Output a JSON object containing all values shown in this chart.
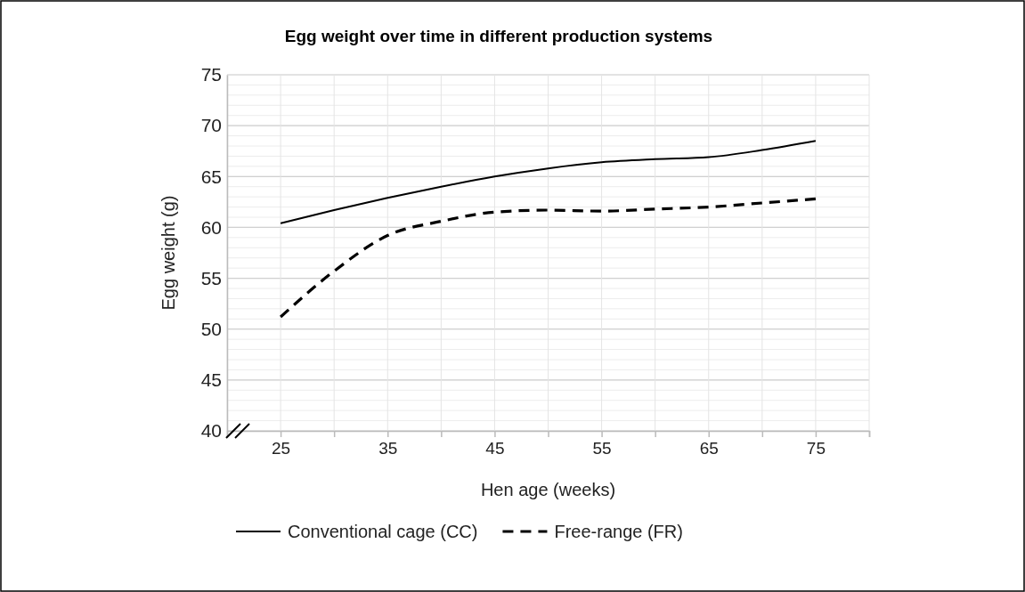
{
  "chart_data": {
    "type": "line",
    "title": "Egg weight over time in different production systems",
    "xlabel": "Hen age (weeks)",
    "ylabel": "Egg weight (g)",
    "x": [
      25,
      30,
      35,
      40,
      45,
      50,
      55,
      60,
      65,
      70,
      75
    ],
    "series": [
      {
        "name": "Conventional cage (CC)",
        "color": "#000000",
        "line_style": "solid",
        "values": [
          60.4,
          61.7,
          62.9,
          64.0,
          65.0,
          65.8,
          66.4,
          66.7,
          66.9,
          67.6,
          68.5
        ]
      },
      {
        "name": "Free-range (FR)",
        "color": "#000000",
        "line_style": "dashed",
        "values": [
          51.2,
          55.7,
          59.2,
          60.6,
          61.5,
          61.7,
          61.6,
          61.8,
          62.0,
          62.4,
          62.8
        ]
      }
    ],
    "xlim": [
      20,
      80
    ],
    "xticks": [
      {
        "value": 20,
        "label": null
      },
      25,
      {
        "value": 30,
        "label": null
      },
      35,
      {
        "value": 40,
        "label": null
      },
      45,
      {
        "value": 50,
        "label": null
      },
      55,
      {
        "value": 60,
        "label": null
      },
      65,
      {
        "value": 70,
        "label": null
      },
      75,
      {
        "value": 80,
        "label": null
      }
    ],
    "ylim": [
      40,
      75
    ],
    "yticks": [
      40,
      45,
      50,
      55,
      60,
      65,
      70,
      75
    ],
    "grid": true,
    "legend": "bottom",
    "marker": "none"
  }
}
